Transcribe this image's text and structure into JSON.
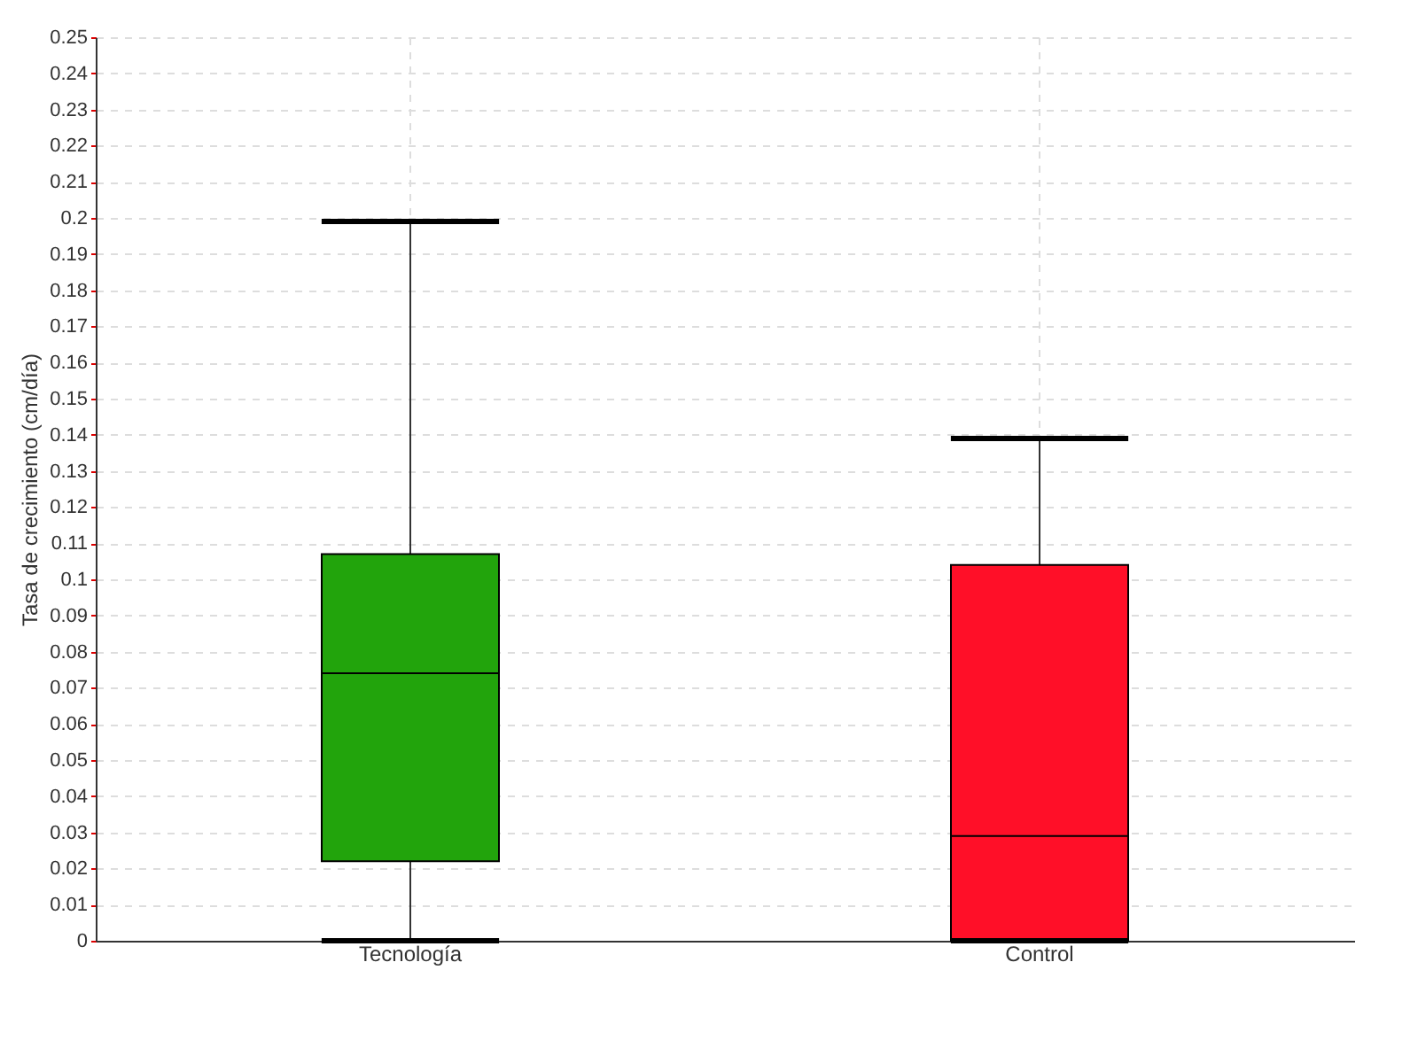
{
  "chart_data": {
    "type": "box",
    "ylabel": "Tasa de crecimiento (cm/día)",
    "categories": [
      "Tecnología",
      "Control"
    ],
    "boxes": [
      {
        "low": 0,
        "q1": 0.022,
        "median": 0.074,
        "q3": 0.107,
        "high": 0.199
      },
      {
        "low": 0,
        "q1": 0,
        "median": 0.029,
        "q3": 0.104,
        "high": 0.139
      }
    ],
    "colors": [
      "#22a40c",
      "#ff0f28"
    ],
    "ylim": [
      0,
      0.25
    ],
    "yticks": [
      0,
      0.01,
      0.02,
      0.03,
      0.04,
      0.05,
      0.06,
      0.07,
      0.08,
      0.09,
      0.1,
      0.11,
      0.12,
      0.13,
      0.14,
      0.15,
      0.16,
      0.17,
      0.18,
      0.19,
      0.2,
      0.21,
      0.22,
      0.23,
      0.24,
      0.25
    ],
    "grid": true,
    "legend": false
  }
}
